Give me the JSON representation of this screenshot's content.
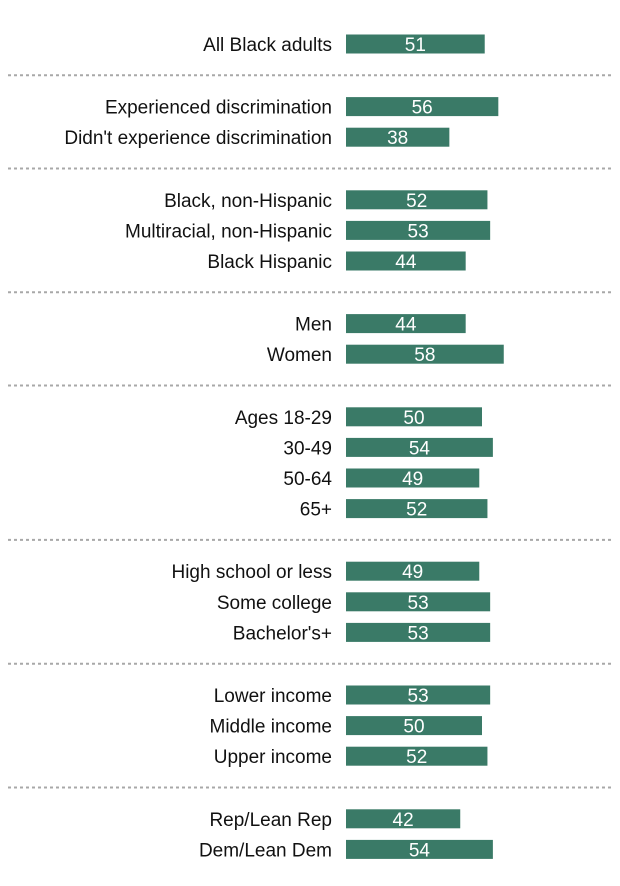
{
  "chart_data": {
    "type": "bar",
    "orientation": "horizontal",
    "bar_color": "#3a7a67",
    "value_label_color": "#ffffff",
    "divider_color": "#a8a8a8",
    "xlim": [
      0,
      100
    ],
    "groups": [
      {
        "rows": [
          {
            "label": "All Black adults",
            "value": 51
          }
        ]
      },
      {
        "rows": [
          {
            "label": "Experienced discrimination",
            "value": 56
          },
          {
            "label": "Didn't experience discrimination",
            "value": 38
          }
        ]
      },
      {
        "rows": [
          {
            "label": "Black, non-Hispanic",
            "value": 52
          },
          {
            "label": "Multiracial, non-Hispanic",
            "value": 53
          },
          {
            "label": "Black Hispanic",
            "value": 44
          }
        ]
      },
      {
        "rows": [
          {
            "label": "Men",
            "value": 44
          },
          {
            "label": "Women",
            "value": 58
          }
        ]
      },
      {
        "rows": [
          {
            "label": "Ages 18-29",
            "value": 50
          },
          {
            "label": "30-49",
            "value": 54
          },
          {
            "label": "50-64",
            "value": 49
          },
          {
            "label": "65+",
            "value": 52
          }
        ]
      },
      {
        "rows": [
          {
            "label": "High school or less",
            "value": 49
          },
          {
            "label": "Some college",
            "value": 53
          },
          {
            "label": "Bachelor's+",
            "value": 53
          }
        ]
      },
      {
        "rows": [
          {
            "label": "Lower income",
            "value": 53
          },
          {
            "label": "Middle income",
            "value": 50
          },
          {
            "label": "Upper income",
            "value": 52
          }
        ]
      },
      {
        "rows": [
          {
            "label": "Rep/Lean Rep",
            "value": 42
          },
          {
            "label": "Dem/Lean Dem",
            "value": 54
          }
        ]
      }
    ]
  }
}
